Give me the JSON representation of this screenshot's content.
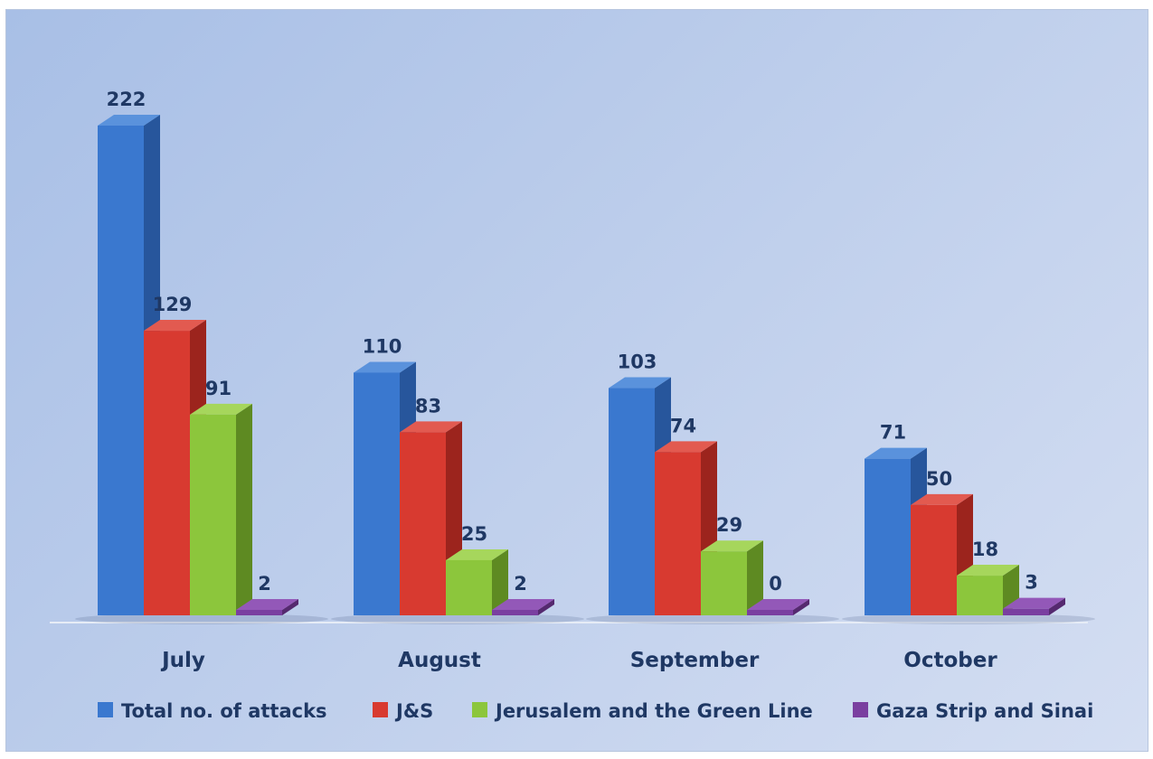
{
  "chart_data": {
    "type": "bar",
    "title": "",
    "xlabel": "",
    "ylabel": "",
    "categories": [
      "July",
      "August",
      "September",
      "October"
    ],
    "series": [
      {
        "name": "Total no. of attacks",
        "values": [
          222,
          110,
          103,
          71
        ],
        "color": "#3a78cf",
        "side": "#27569c",
        "top": "#5a92dc"
      },
      {
        "name": "J&S",
        "values": [
          129,
          83,
          74,
          50
        ],
        "color": "#d83a30",
        "side": "#9c241d",
        "top": "#e25a50"
      },
      {
        "name": "Jerusalem and the Green Line",
        "values": [
          91,
          25,
          29,
          18
        ],
        "color": "#8cc63c",
        "side": "#5e8a22",
        "top": "#a6d65c"
      },
      {
        "name": "Gaza Strip and Sinai",
        "values": [
          2,
          2,
          0,
          3
        ],
        "color": "#7a3fa0",
        "side": "#55296f",
        "top": "#9358b8"
      }
    ],
    "ylim": [
      0,
      222
    ],
    "grid": false,
    "legend": "bottom",
    "value_label_color": "#1f3864"
  }
}
